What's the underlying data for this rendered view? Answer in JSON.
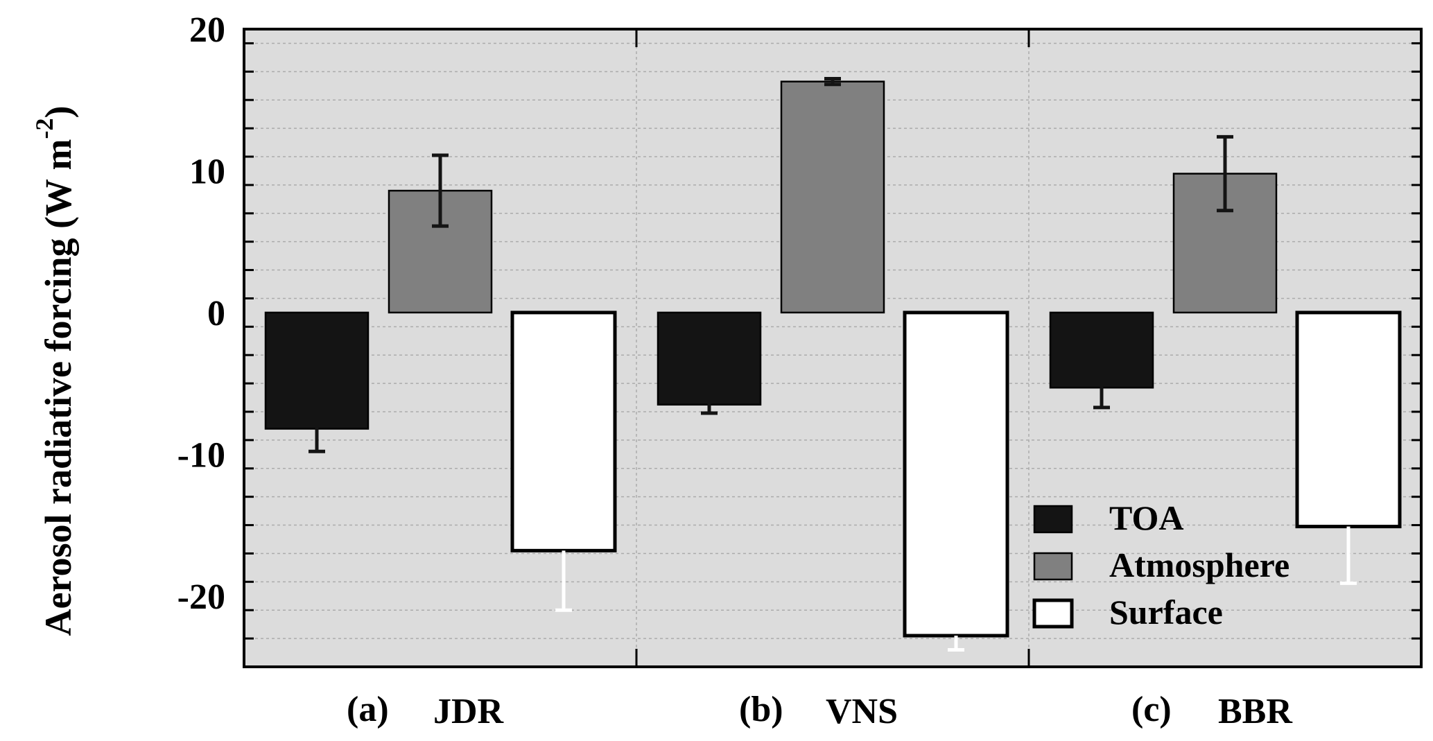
{
  "chart_data": {
    "type": "bar",
    "ylabel": "Aerosol radiative forcing (W m",
    "ylabel_sup": "-2",
    "ylabel_close": ")",
    "ylim": [
      -25,
      20
    ],
    "yticks": [
      {
        "value": 20,
        "label": "20"
      },
      {
        "value": 10,
        "label": "10"
      },
      {
        "value": 0,
        "label": "0"
      },
      {
        "value": -10,
        "label": "-10"
      },
      {
        "value": -20,
        "label": "-20"
      }
    ],
    "categories": [
      {
        "prefix": "(a)",
        "name": "JDR"
      },
      {
        "prefix": "(b)",
        "name": "VNS"
      },
      {
        "prefix": "(c)",
        "name": "BBR"
      }
    ],
    "series": [
      {
        "name": "TOA",
        "color": "#141414",
        "error_color": "#141414",
        "values": [
          -8.2,
          -6.5,
          -5.3
        ],
        "errors": [
          1.6,
          0.6,
          1.4
        ]
      },
      {
        "name": "Atmosphere",
        "color": "#808080",
        "error_color": "#141414",
        "values": [
          8.6,
          16.3,
          9.8
        ],
        "errors": [
          2.5,
          0.2,
          2.6
        ]
      },
      {
        "name": "Surface",
        "color": "#ffffff",
        "error_color": "#ffffff",
        "values": [
          -16.8,
          -22.8,
          -15.1
        ],
        "errors": [
          4.2,
          1.0,
          4.0
        ]
      }
    ],
    "grid": true,
    "legend_position": "bottom-right",
    "background": "#dcdcdc"
  }
}
